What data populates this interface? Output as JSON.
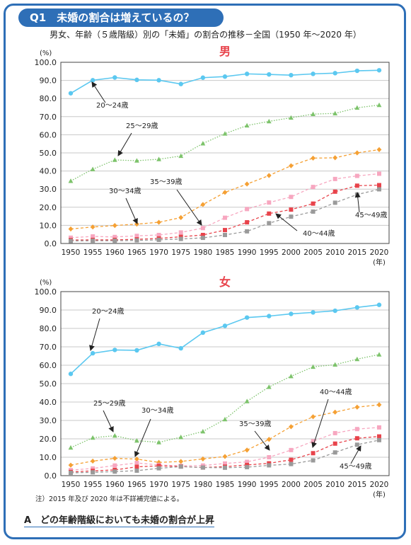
{
  "header": {
    "question": "Q1　未婚の割合は増えているの？"
  },
  "subtitle": "男女、年齢（５歳階級）別の「未婚」の割合の推移－全国（1950 年～2020 年）",
  "note": "注）2015 年及び 2020 年は不詳補完値による。",
  "answer": "A　どの年齢階級においても未婚の割合が上昇",
  "chart_data": [
    {
      "type": "line",
      "title": "男",
      "ylabel": "(%)",
      "xlabel": "(年)",
      "ylim": [
        0,
        100
      ],
      "yticks": [
        "0.0",
        "10.0",
        "20.0",
        "30.0",
        "40.0",
        "50.0",
        "60.0",
        "70.0",
        "80.0",
        "90.0",
        "100.0"
      ],
      "x": [
        1950,
        1955,
        1960,
        1965,
        1970,
        1975,
        1980,
        1985,
        1990,
        1995,
        2000,
        2005,
        2010,
        2015,
        2020
      ],
      "series": [
        {
          "name": "20～24歳",
          "color": "#5bc8f0",
          "marker": "circle",
          "values": [
            82.9,
            90.1,
            91.6,
            90.3,
            90.1,
            88.0,
            91.5,
            92.1,
            93.6,
            93.3,
            92.9,
            93.6,
            94.0,
            95.3,
            95.6
          ]
        },
        {
          "name": "25～29歳",
          "color": "#7dc36b",
          "marker": "triangle",
          "values": [
            34.5,
            41.0,
            46.1,
            45.7,
            46.5,
            48.3,
            55.2,
            60.6,
            65.1,
            67.4,
            69.4,
            71.4,
            71.8,
            74.9,
            76.4
          ]
        },
        {
          "name": "30～34歳",
          "color": "#f5a033",
          "marker": "diamond",
          "values": [
            8.0,
            9.1,
            9.9,
            10.7,
            11.7,
            14.3,
            21.5,
            28.2,
            32.8,
            37.5,
            42.9,
            47.1,
            47.3,
            50.0,
            51.8
          ]
        },
        {
          "name": "35～39歳",
          "color": "#f7a7c0",
          "marker": "square",
          "values": [
            3.2,
            3.9,
            3.6,
            4.2,
            4.7,
            6.1,
            8.5,
            14.2,
            19.0,
            22.6,
            25.7,
            31.2,
            35.6,
            37.3,
            38.5
          ]
        },
        {
          "name": "40～44歳",
          "color": "#e8434b",
          "marker": "square",
          "values": [
            1.9,
            2.0,
            2.0,
            2.3,
            2.8,
            3.7,
            4.7,
            7.4,
            11.7,
            16.5,
            18.7,
            22.0,
            28.6,
            31.9,
            32.2
          ]
        },
        {
          "name": "45～49歳",
          "color": "#9a9a9a",
          "marker": "square",
          "values": [
            1.4,
            1.5,
            1.5,
            1.7,
            2.0,
            2.5,
            3.1,
            4.7,
            6.7,
            11.2,
            14.8,
            17.6,
            22.5,
            27.0,
            29.9
          ]
        }
      ]
    },
    {
      "type": "line",
      "title": "女",
      "ylabel": "(%)",
      "xlabel": "(年)",
      "ylim": [
        0,
        100
      ],
      "yticks": [
        "0.0",
        "10.0",
        "20.0",
        "30.0",
        "40.0",
        "50.0",
        "60.0",
        "70.0",
        "80.0",
        "90.0",
        "100.0"
      ],
      "x": [
        1950,
        1955,
        1960,
        1965,
        1970,
        1975,
        1980,
        1985,
        1990,
        1995,
        2000,
        2005,
        2010,
        2015,
        2020
      ],
      "series": [
        {
          "name": "20～24歳",
          "color": "#5bc8f0",
          "marker": "circle",
          "values": [
            55.3,
            66.5,
            68.3,
            68.1,
            71.6,
            69.2,
            77.7,
            81.4,
            85.9,
            86.7,
            87.9,
            88.7,
            89.6,
            91.4,
            92.8
          ]
        },
        {
          "name": "25～29歳",
          "color": "#7dc36b",
          "marker": "triangle",
          "values": [
            15.2,
            20.6,
            21.7,
            19.0,
            18.1,
            20.9,
            24.0,
            30.6,
            40.4,
            48.2,
            54.0,
            59.1,
            60.3,
            63.3,
            65.8
          ]
        },
        {
          "name": "30～34歳",
          "color": "#f5a033",
          "marker": "diamond",
          "values": [
            5.7,
            7.9,
            9.4,
            9.0,
            7.2,
            7.7,
            9.1,
            10.4,
            13.9,
            19.7,
            26.6,
            32.0,
            34.5,
            37.2,
            38.5
          ]
        },
        {
          "name": "35～39歳",
          "color": "#f7a7c0",
          "marker": "square",
          "values": [
            3.0,
            3.9,
            5.5,
            6.9,
            5.8,
            5.3,
            5.5,
            6.6,
            7.5,
            10.0,
            13.9,
            18.7,
            23.1,
            25.3,
            26.2
          ]
        },
        {
          "name": "40～44歳",
          "color": "#e8434b",
          "marker": "square",
          "values": [
            2.0,
            2.6,
            3.1,
            4.8,
            5.3,
            5.0,
            4.4,
            4.9,
            5.8,
            6.7,
            8.6,
            12.2,
            17.4,
            20.3,
            21.3
          ]
        },
        {
          "name": "45～49歳",
          "color": "#9a9a9a",
          "marker": "square",
          "values": [
            1.5,
            1.8,
            2.2,
            2.7,
            4.0,
            4.9,
            4.4,
            4.3,
            4.6,
            5.6,
            6.3,
            8.3,
            12.6,
            16.8,
            19.3
          ]
        }
      ]
    }
  ]
}
